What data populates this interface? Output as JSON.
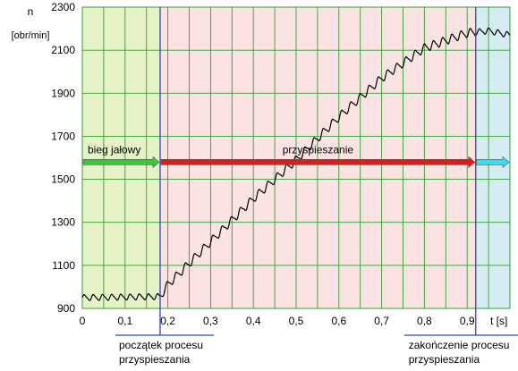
{
  "chart_data": {
    "type": "line",
    "ylabel": "n",
    "ylabel_unit": "[obr/min]",
    "xlabel": "t [s]",
    "xlim": [
      0,
      1.0
    ],
    "ylim": [
      900,
      2300
    ],
    "x_ticks": [
      "0",
      "0,1",
      "0,2",
      "0,3",
      "0,4",
      "0,5",
      "0,6",
      "0,7",
      "0,8",
      "0,9"
    ],
    "x_tick_values": [
      0,
      0.1,
      0.2,
      0.3,
      0.4,
      0.5,
      0.6,
      0.7,
      0.8,
      0.9
    ],
    "y_ticks": [
      "900",
      "1100",
      "1300",
      "1500",
      "1700",
      "1900",
      "2100",
      "2300"
    ],
    "y_tick_values": [
      900,
      1100,
      1300,
      1500,
      1700,
      1900,
      2100,
      2300
    ],
    "grid": true,
    "phases": [
      {
        "label": "bieg jałowy",
        "x_start": 0.0,
        "x_end": 0.182,
        "fill": "#e4f2c6",
        "arrow_color": "#33cc33"
      },
      {
        "label": "przyspieszanie",
        "x_start": 0.182,
        "x_end": 0.92,
        "fill": "#fbe3e3",
        "arrow_color": "#e61919"
      },
      {
        "label": "",
        "x_start": 0.92,
        "x_end": 1.0,
        "fill": "#d5ecf2",
        "arrow_color": "#33e0f0"
      }
    ],
    "arrow_level": 1580,
    "markers": [
      {
        "x": 0.182,
        "label_line1": "początek procesu",
        "label_line2": "przyspieszania"
      },
      {
        "x": 0.92,
        "label_line1": "zakończenie procesu",
        "label_line2": "przyspieszania"
      }
    ],
    "series": [
      {
        "points": [
          [
            0.0,
            950
          ],
          [
            0.182,
            955
          ],
          [
            0.2,
            1010
          ],
          [
            0.3,
            1210
          ],
          [
            0.4,
            1410
          ],
          [
            0.5,
            1590
          ],
          [
            0.6,
            1790
          ],
          [
            0.7,
            1970
          ],
          [
            0.8,
            2110
          ],
          [
            0.9,
            2180
          ],
          [
            0.95,
            2190
          ],
          [
            1.0,
            2170
          ]
        ],
        "ripple_amplitude": 18,
        "ripple_period": 0.0215,
        "color": "#000000"
      }
    ]
  }
}
